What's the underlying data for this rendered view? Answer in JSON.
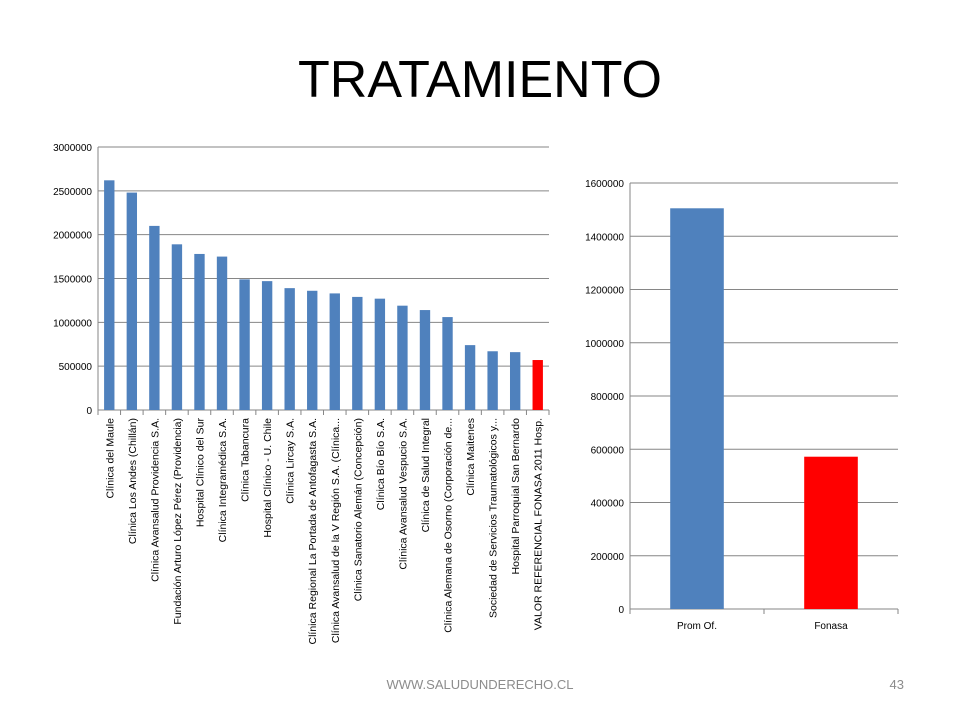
{
  "slide": {
    "title": "TRATAMIENTO",
    "footer": "WWW.SALUDUNDERECHO.CL",
    "page_number": "43"
  },
  "colors": {
    "blue": "#4f81bd",
    "red": "#ff0000",
    "grid": "#868686"
  },
  "chart_data": [
    {
      "type": "bar",
      "title": "",
      "xlabel": "",
      "ylabel": "",
      "ylim": [
        0,
        3000000
      ],
      "yticks": [
        "0",
        "500000",
        "1000000",
        "1500000",
        "2000000",
        "2500000",
        "3000000"
      ],
      "grid": true,
      "legend": "none",
      "categories": [
        "Clínica del Maule",
        "Clínica Los Andes (Chillán)",
        "Clínica Avansalud Providencia S.A.",
        "Fundación Arturo López Pérez (Providencia)",
        "Hospital Clínico del Sur",
        "Clínica Integramédica S.A.",
        "Clínica Tabancura",
        "Hospital Clínico - U. Chile",
        "Clínica Lircay S.A.",
        "Clínica Regional La Portada de Antofagasta S.A.",
        "Clínica Avansalud de la V Región S.A. (Clínica...",
        "Clínica Sanatorio Alemán (Concepción)",
        "Clínica Bío Bío S.A.",
        "Clínica Avansalud Vespucio S.A.",
        "Clínica de Salud Integral",
        "Clínica Alemana de Osorno (Corporación de...",
        "Clínica Maitenes",
        "Sociedad de Servicios Traumatológicos y...",
        "Hospital Parroquial San Bernardo",
        "VALOR REFERENCIAL FONASA 2011 Hosp."
      ],
      "values": [
        2620000,
        2480000,
        2100000,
        1890000,
        1780000,
        1750000,
        1490000,
        1470000,
        1390000,
        1360000,
        1330000,
        1290000,
        1270000,
        1190000,
        1140000,
        1060000,
        740000,
        670000,
        660000,
        570000
      ],
      "highlight_index": 19
    },
    {
      "type": "bar",
      "title": "",
      "xlabel": "",
      "ylabel": "",
      "ylim": [
        0,
        1600000
      ],
      "yticks": [
        "0",
        "200000",
        "400000",
        "600000",
        "800000",
        "1000000",
        "1200000",
        "1400000",
        "1600000"
      ],
      "grid": true,
      "legend": "none",
      "categories": [
        "Prom Of.",
        "Fonasa"
      ],
      "values": [
        1505000,
        572000
      ],
      "highlight_index": 1
    }
  ]
}
